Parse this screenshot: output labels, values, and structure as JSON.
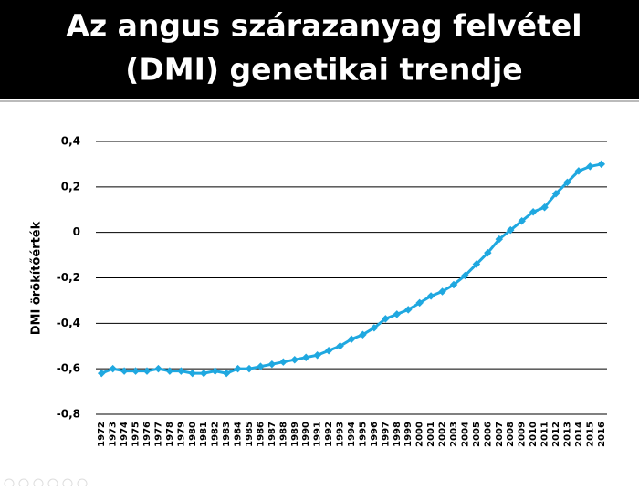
{
  "chart_data": {
    "type": "line",
    "title": [
      "Az angus szárazanyag felvétel",
      "(DMI) genetikai trendje"
    ],
    "y_label": "DMI örökítőérték",
    "categories": [
      "1972",
      "1973",
      "1974",
      "1975",
      "1976",
      "1977",
      "1978",
      "1979",
      "1980",
      "1981",
      "1982",
      "1983",
      "1984",
      "1985",
      "1986",
      "1987",
      "1988",
      "1989",
      "1990",
      "1991",
      "1992",
      "1993",
      "1994",
      "1995",
      "1996",
      "1997",
      "1998",
      "1999",
      "2000",
      "2001",
      "2002",
      "2003",
      "2004",
      "2005",
      "2006",
      "2007",
      "2008",
      "2009",
      "2010",
      "2011",
      "2012",
      "2013",
      "2014",
      "2015",
      "2016"
    ],
    "values": [
      -0.62,
      -0.6,
      -0.61,
      -0.61,
      -0.61,
      -0.6,
      -0.61,
      -0.61,
      -0.62,
      -0.62,
      -0.61,
      -0.62,
      -0.6,
      -0.6,
      -0.59,
      -0.58,
      -0.57,
      -0.56,
      -0.55,
      -0.54,
      -0.52,
      -0.5,
      -0.47,
      -0.45,
      -0.42,
      -0.38,
      -0.36,
      -0.34,
      -0.31,
      -0.28,
      -0.26,
      -0.23,
      -0.19,
      -0.14,
      -0.09,
      -0.03,
      0.01,
      0.05,
      0.09,
      0.11,
      0.17,
      0.22,
      0.27,
      0.29,
      0.3
    ],
    "color": "#1fa8e0",
    "ylim": [
      -0.8,
      0.4
    ],
    "yticks": [
      {
        "value": -0.8,
        "label": "-0,8"
      },
      {
        "value": -0.6,
        "label": "-0,6"
      },
      {
        "value": -0.4,
        "label": "-0,4"
      },
      {
        "value": -0.2,
        "label": "-0,2"
      },
      0,
      {
        "value": 0.2,
        "label": "0,2"
      },
      {
        "value": 0.4,
        "label": "0,4"
      }
    ],
    "grid": true
  }
}
